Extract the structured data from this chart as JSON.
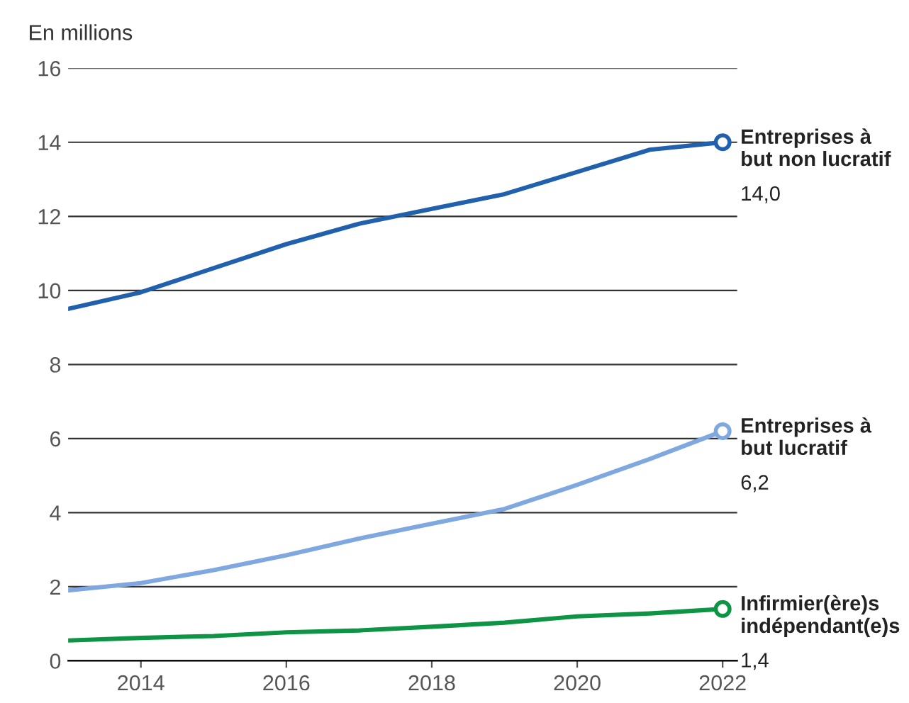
{
  "chart_data": {
    "type": "line",
    "ylabel": "En millions",
    "x": [
      2013,
      2014,
      2015,
      2016,
      2017,
      2018,
      2019,
      2020,
      2021,
      2022
    ],
    "series": [
      {
        "name": "Entreprises à but non lucratif",
        "color": "#2160ad",
        "values": [
          9.5,
          9.95,
          10.6,
          11.25,
          11.8,
          12.2,
          12.6,
          13.2,
          13.8,
          14.0
        ],
        "value_labels": [
          null,
          null,
          null,
          null,
          null,
          null,
          null,
          null,
          null,
          "14,0"
        ]
      },
      {
        "name": "Entreprises à but lucratif",
        "color": "#7fa8e0",
        "values": [
          1.9,
          2.1,
          2.45,
          2.85,
          3.3,
          3.7,
          4.1,
          4.75,
          5.45,
          6.2
        ],
        "value_labels": [
          null,
          null,
          null,
          null,
          null,
          null,
          null,
          null,
          null,
          "6,2"
        ]
      },
      {
        "name": "Infirmier(ère)s indépendant(e)s",
        "color": "#0e9445",
        "values": [
          0.55,
          0.62,
          0.67,
          0.77,
          0.82,
          0.92,
          1.03,
          1.2,
          1.28,
          1.4
        ],
        "value_labels": [
          null,
          null,
          null,
          null,
          null,
          null,
          null,
          null,
          null,
          "1,4"
        ]
      }
    ],
    "xlim": [
      2013,
      2022.2
    ],
    "xticks": [
      2014,
      2016,
      2018,
      2020,
      2022
    ],
    "ylim": [
      0,
      16
    ],
    "yticks": [
      0,
      2,
      4,
      6,
      8,
      10,
      12,
      14,
      16
    ],
    "grid": "y",
    "line_style": "solid",
    "legend": false
  }
}
